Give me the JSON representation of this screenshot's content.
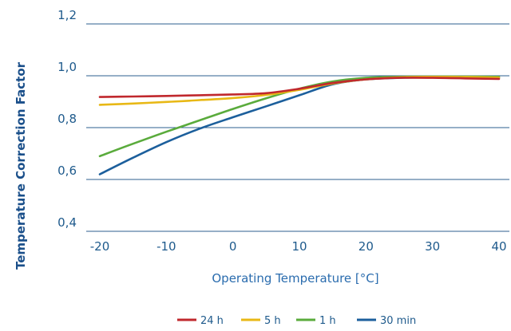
{
  "chart_data": {
    "type": "line",
    "title": "",
    "xlabel": "Operating Temperature [°C]",
    "ylabel": "Temperature Correction Factor",
    "xlim": [
      -20,
      40
    ],
    "ylim": [
      0.4,
      1.2
    ],
    "grid": "horizontal",
    "legend_position": "bottom",
    "x_ticks": [
      -20,
      -10,
      0,
      10,
      20,
      30,
      40
    ],
    "x_tick_labels": [
      "-20",
      "-10",
      "0",
      "10",
      "20",
      "30",
      "40"
    ],
    "y_ticks": [
      0.4,
      0.6,
      0.8,
      1.0,
      1.2
    ],
    "y_tick_labels": [
      "0,4",
      "0,6",
      "0,8",
      "1,0",
      "1,2"
    ],
    "x": [
      -20,
      -15,
      -10,
      -5,
      0,
      5,
      10,
      15,
      20,
      25,
      30,
      35,
      40
    ],
    "series": [
      {
        "name": "24 h",
        "color": "#c0282d",
        "values": [
          0.918,
          0.92,
          0.922,
          0.925,
          0.928,
          0.933,
          0.95,
          0.972,
          0.986,
          0.992,
          0.992,
          0.99,
          0.988
        ]
      },
      {
        "name": "5 h",
        "color": "#e8b815",
        "values": [
          0.888,
          0.893,
          0.899,
          0.906,
          0.914,
          0.926,
          0.946,
          0.97,
          0.986,
          0.994,
          0.996,
          0.995,
          0.993
        ]
      },
      {
        "name": "1 h",
        "color": "#5aab3c",
        "values": [
          0.69,
          0.738,
          0.784,
          0.828,
          0.872,
          0.913,
          0.95,
          0.978,
          0.992,
          0.996,
          0.997,
          0.997,
          0.996
        ]
      },
      {
        "name": "30 min",
        "color": "#1c5f9c",
        "values": [
          0.62,
          0.684,
          0.744,
          0.796,
          0.84,
          0.882,
          0.925,
          0.967,
          0.986,
          0.992,
          0.994,
          0.994,
          0.993
        ]
      }
    ]
  }
}
